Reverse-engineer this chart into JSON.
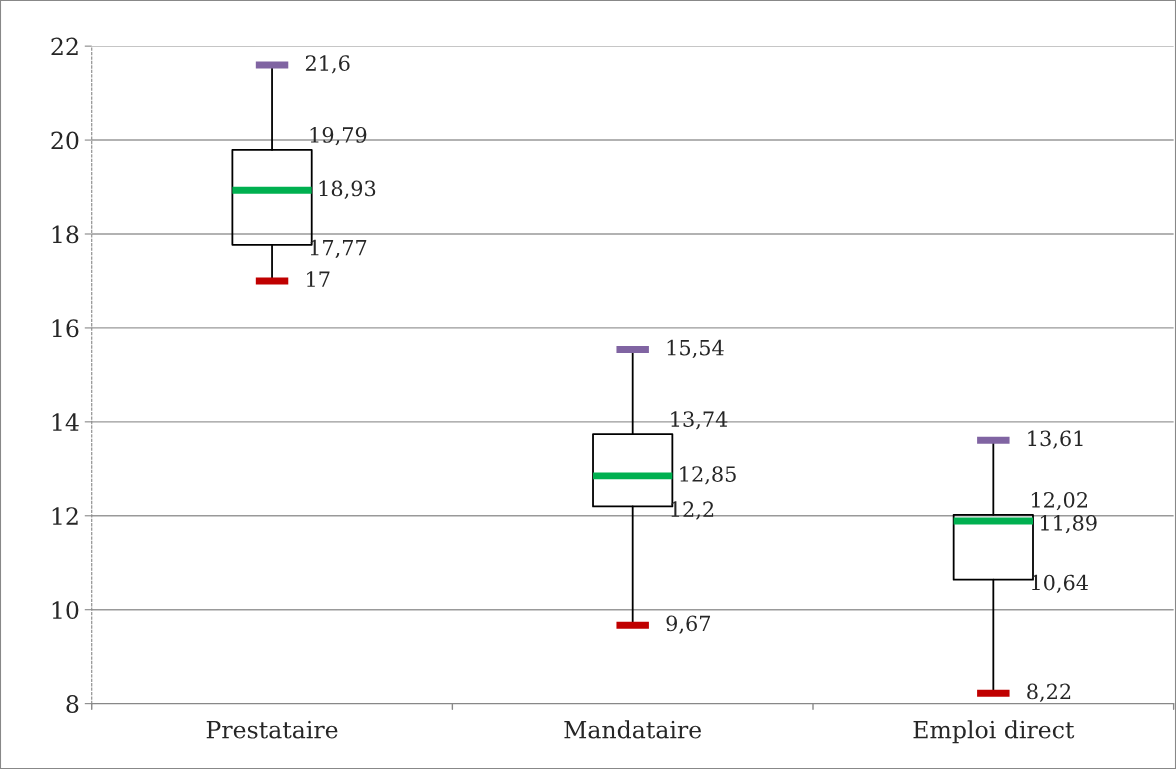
{
  "chart_data": {
    "type": "box",
    "categories": [
      "Prestataire",
      "Mandataire",
      "Emploi direct"
    ],
    "boxes": [
      {
        "low": 17,
        "q1": 17.77,
        "median": 18.93,
        "q3": 19.79,
        "high": 21.6
      },
      {
        "low": 9.67,
        "q1": 12.2,
        "median": 12.85,
        "q3": 13.74,
        "high": 15.54
      },
      {
        "low": 8.22,
        "q1": 10.64,
        "median": 11.89,
        "q3": 12.02,
        "high": 13.61
      }
    ],
    "ylim": [
      8,
      22
    ],
    "yticks": [
      8,
      10,
      12,
      14,
      16,
      18,
      20,
      22
    ],
    "grid": "y",
    "annotations": [
      {
        "text": "21,6",
        "x": "Prestataire",
        "y": 21.6
      },
      {
        "text": "19,79",
        "x": "Prestataire",
        "y": 19.79
      },
      {
        "text": "18,93",
        "x": "Prestataire",
        "y": 18.93
      },
      {
        "text": "17,77",
        "x": "Prestataire",
        "y": 17.77
      },
      {
        "text": "17",
        "x": "Prestataire",
        "y": 17
      },
      {
        "text": "15,54",
        "x": "Mandataire",
        "y": 15.54
      },
      {
        "text": "13,74",
        "x": "Mandataire",
        "y": 13.74
      },
      {
        "text": "12,85",
        "x": "Mandataire",
        "y": 12.85
      },
      {
        "text": "12,2",
        "x": "Mandataire",
        "y": 12.2
      },
      {
        "text": "9,67",
        "x": "Mandataire",
        "y": 9.67
      },
      {
        "text": "13,61",
        "x": "Emploi direct",
        "y": 13.61
      },
      {
        "text": "12,02",
        "x": "Emploi direct",
        "y": 12.02
      },
      {
        "text": "11,89",
        "x": "Emploi direct",
        "y": 11.89
      },
      {
        "text": "10,64",
        "x": "Emploi direct",
        "y": 10.64
      },
      {
        "text": "8,22",
        "x": "Emploi direct",
        "y": 8.22
      }
    ]
  }
}
